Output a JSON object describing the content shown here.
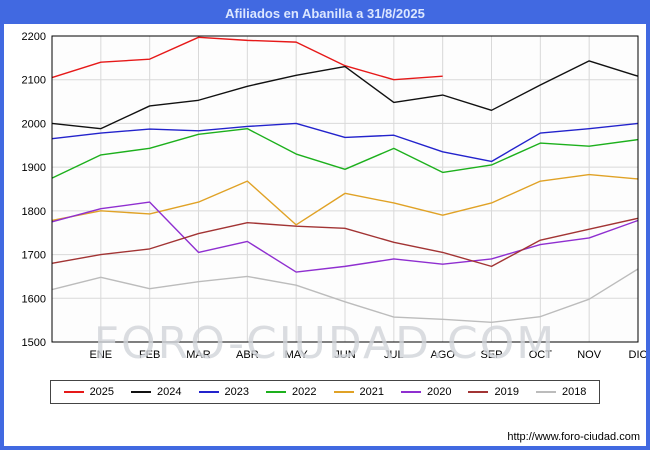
{
  "page": {
    "watermark": "FORO-CIUDAD.COM",
    "footer_url": "http://www.foro-ciudad.com",
    "frame_color": "#4169e1"
  },
  "chart_data": {
    "type": "line",
    "title": "Afiliados en Abanilla a 31/8/2025",
    "xlabel": "",
    "ylabel": "",
    "ylim": [
      1500,
      2200
    ],
    "ytick_step": 100,
    "grid": true,
    "legend_position": "bottom",
    "categories": [
      "",
      "ENE",
      "FEB",
      "MAR",
      "ABR",
      "MAY",
      "JUN",
      "JUL",
      "AGO",
      "SEP",
      "OCT",
      "NOV",
      "DIC"
    ],
    "series": [
      {
        "name": "2025",
        "color": "#e61919",
        "values": [
          2105,
          2140,
          2147,
          2197,
          2190,
          2186,
          2132,
          2100,
          2108,
          null,
          null,
          null,
          null
        ]
      },
      {
        "name": "2024",
        "color": "#111111",
        "values": [
          2000,
          1988,
          2040,
          2053,
          2085,
          2110,
          2130,
          2048,
          2065,
          2030,
          2088,
          2143,
          2108
        ]
      },
      {
        "name": "2023",
        "color": "#2323cc",
        "values": [
          1965,
          1978,
          1987,
          1983,
          1993,
          2000,
          1968,
          1973,
          1935,
          1913,
          1978,
          1988,
          2000
        ]
      },
      {
        "name": "2022",
        "color": "#1db01d",
        "values": [
          1875,
          1928,
          1943,
          1975,
          1988,
          1930,
          1895,
          1943,
          1888,
          1905,
          1955,
          1948,
          1963
        ]
      },
      {
        "name": "2021",
        "color": "#e0a226",
        "values": [
          1778,
          1800,
          1793,
          1820,
          1868,
          1768,
          1840,
          1818,
          1790,
          1818,
          1868,
          1883,
          1873
        ]
      },
      {
        "name": "2020",
        "color": "#8f2fd0",
        "values": [
          1775,
          1805,
          1820,
          1705,
          1730,
          1660,
          1673,
          1690,
          1678,
          1690,
          1723,
          1738,
          1778
        ]
      },
      {
        "name": "2019",
        "color": "#a23434",
        "values": [
          1680,
          1700,
          1713,
          1748,
          1773,
          1765,
          1760,
          1728,
          1705,
          1673,
          1733,
          1758,
          1783
        ]
      },
      {
        "name": "2018",
        "color": "#bcbcbc",
        "values": [
          1620,
          1648,
          1622,
          1638,
          1650,
          1630,
          1592,
          1557,
          1552,
          1545,
          1558,
          1598,
          1667
        ]
      }
    ]
  }
}
